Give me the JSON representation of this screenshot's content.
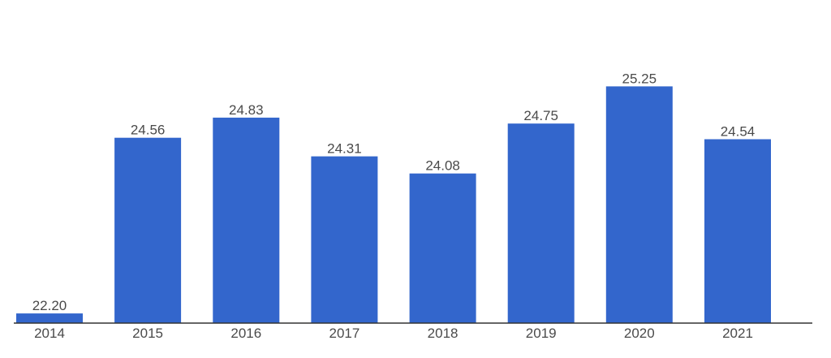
{
  "chart_data": {
    "type": "bar",
    "categories": [
      "2014",
      "2015",
      "2016",
      "2017",
      "2018",
      "2019",
      "2020",
      "2021"
    ],
    "values": [
      22.2,
      24.56,
      24.83,
      24.31,
      24.08,
      24.75,
      25.25,
      24.54
    ],
    "value_labels": [
      "22.20",
      "24.56",
      "24.83",
      "24.31",
      "24.08",
      "24.75",
      "25.25",
      "24.54"
    ],
    "title": "",
    "xlabel": "",
    "ylabel": "",
    "ylim": [
      22.07,
      25.66
    ],
    "grid": false,
    "legend": "none",
    "colors": {
      "bar": "#3366cc",
      "text": "#4a4a4a",
      "axis": "#333333"
    }
  }
}
